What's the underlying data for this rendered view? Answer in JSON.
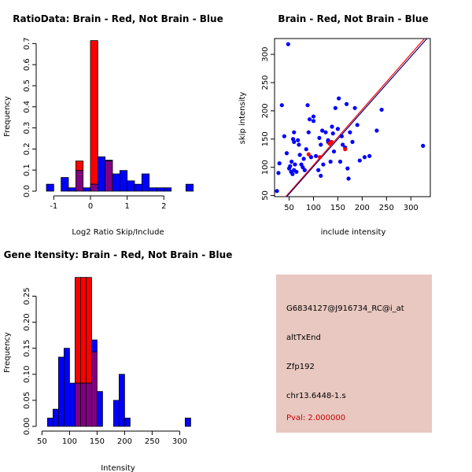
{
  "colors": {
    "red": "#ff0000",
    "blue": "#0000ff",
    "overlap": "#800080",
    "line_red": "#ff0000",
    "line_blue": "#000080",
    "panel_bg": "#e8c8c0",
    "pval": "#cc0000"
  },
  "chart_data": [
    {
      "id": "ratio",
      "type": "bar",
      "title": "RatioData: Brain - Red, Not Brain - Blue",
      "xlabel": "Log2 Ratio Skip/Include",
      "ylabel": "Frequency",
      "xlim": [
        -1.35,
        2.85
      ],
      "ylim": [
        0,
        0.72
      ],
      "xticks": [
        -1,
        0,
        1,
        2
      ],
      "yticks": [
        0.0,
        0.1,
        0.2,
        0.3,
        0.4,
        0.5,
        0.6,
        0.7
      ],
      "bin_edges": [
        -1.2,
        -1.0,
        -0.8,
        -0.6,
        -0.4,
        -0.2,
        0.0,
        0.2,
        0.4,
        0.6,
        0.8,
        1.0,
        1.2,
        1.4,
        1.6,
        1.8,
        2.0,
        2.2,
        2.4,
        2.6,
        2.8
      ],
      "series": [
        {
          "name": "Not Brain",
          "values": [
            0.033,
            0,
            0.065,
            0.016,
            0.098,
            0.016,
            0.033,
            0.163,
            0.147,
            0.082,
            0.098,
            0.049,
            0.033,
            0.082,
            0.016,
            0.016,
            0.016,
            0,
            0,
            0.033
          ]
        },
        {
          "name": "Brain",
          "values": [
            0,
            0,
            0,
            0,
            0.143,
            0,
            0.714,
            0,
            0.143,
            0,
            0,
            0,
            0,
            0,
            0,
            0,
            0,
            0,
            0,
            0
          ]
        }
      ]
    },
    {
      "id": "scatter",
      "type": "scatter",
      "title": "Brain - Red, Not Brain - Blue",
      "xlabel": "include intensity",
      "ylabel": "skip intensity",
      "xlim": [
        20,
        340
      ],
      "ylim": [
        48,
        328
      ],
      "xticks": [
        50,
        100,
        150,
        200,
        250,
        300
      ],
      "yticks": [
        50,
        100,
        150,
        200,
        250,
        300
      ],
      "series": [
        {
          "name": "Not Brain",
          "points": [
            [
              48,
              318
            ],
            [
              35,
              210
            ],
            [
              40,
              155
            ],
            [
              30,
              107
            ],
            [
              28,
              90
            ],
            [
              25,
              58
            ],
            [
              45,
              125
            ],
            [
              50,
              98
            ],
            [
              52,
              102
            ],
            [
              54,
              92
            ],
            [
              55,
              110
            ],
            [
              57,
              88
            ],
            [
              60,
              95
            ],
            [
              62,
              105
            ],
            [
              58,
              150
            ],
            [
              60,
              145
            ],
            [
              60,
              162
            ],
            [
              68,
              148
            ],
            [
              70,
              140
            ],
            [
              72,
              122
            ],
            [
              75,
              105
            ],
            [
              78,
              100
            ],
            [
              80,
              115
            ],
            [
              82,
              95
            ],
            [
              85,
              132
            ],
            [
              88,
              210
            ],
            [
              90,
              162
            ],
            [
              92,
              185
            ],
            [
              95,
              118
            ],
            [
              100,
              190
            ],
            [
              105,
              120
            ],
            [
              110,
              95
            ],
            [
              112,
              152
            ],
            [
              115,
              140
            ],
            [
              118,
              165
            ],
            [
              120,
              105
            ],
            [
              125,
              162
            ],
            [
              130,
              148
            ],
            [
              135,
              110
            ],
            [
              138,
              172
            ],
            [
              140,
              160
            ],
            [
              142,
              128
            ],
            [
              145,
              205
            ],
            [
              150,
              168
            ],
            [
              152,
              222
            ],
            [
              155,
              110
            ],
            [
              158,
              155
            ],
            [
              160,
              140
            ],
            [
              165,
              135
            ],
            [
              168,
              212
            ],
            [
              170,
              98
            ],
            [
              172,
              80
            ],
            [
              175,
              162
            ],
            [
              180,
              145
            ],
            [
              185,
              205
            ],
            [
              190,
              175
            ],
            [
              195,
              112
            ],
            [
              205,
              118
            ],
            [
              215,
              120
            ],
            [
              230,
              165
            ],
            [
              240,
              202
            ],
            [
              325,
              138
            ],
            [
              100,
              182
            ],
            [
              65,
              92
            ],
            [
              115,
              85
            ],
            [
              130,
              145
            ]
          ]
        },
        {
          "name": "Brain",
          "points": [
            [
              90,
              123
            ],
            [
              113,
              118
            ],
            [
              133,
              142
            ],
            [
              137,
              145
            ],
            [
              165,
              132
            ]
          ]
        }
      ],
      "lines": [
        {
          "name": "Brain fit",
          "from": [
            43,
            48
          ],
          "to": [
            328,
            328
          ]
        },
        {
          "name": "Not Brain fit",
          "from": [
            45,
            48
          ],
          "to": [
            333,
            328
          ]
        }
      ]
    },
    {
      "id": "intensity",
      "type": "bar",
      "title": "Gene Itensity: Brain - Red, Not Brain - Blue",
      "xlabel": "Intensity",
      "ylabel": "Frequency",
      "xlim": [
        48,
        328
      ],
      "ylim": [
        0,
        0.29
      ],
      "xticks": [
        50,
        100,
        150,
        200,
        250,
        300
      ],
      "yticks": [
        0.0,
        0.05,
        0.1,
        0.15,
        0.2,
        0.25
      ],
      "bin_edges": [
        60,
        70,
        80,
        90,
        100,
        110,
        120,
        130,
        140,
        150,
        160,
        170,
        180,
        190,
        200,
        210,
        220,
        230,
        240,
        250,
        260,
        270,
        280,
        290,
        300,
        310,
        320
      ],
      "series": [
        {
          "name": "Not Brain",
          "values": [
            0.016,
            0.033,
            0.133,
            0.15,
            0.083,
            0.083,
            0.083,
            0.083,
            0.166,
            0.067,
            0,
            0,
            0.05,
            0.1,
            0.016,
            0,
            0,
            0,
            0,
            0,
            0,
            0,
            0,
            0,
            0,
            0.016
          ]
        },
        {
          "name": "Brain",
          "values": [
            0,
            0,
            0,
            0,
            0,
            0.286,
            0.286,
            0.286,
            0.143,
            0,
            0,
            0,
            0,
            0,
            0,
            0,
            0,
            0,
            0,
            0,
            0,
            0,
            0,
            0,
            0,
            0
          ]
        }
      ]
    }
  ],
  "info_panel": {
    "probe_id": "G6834127@J916734_RC@i_at",
    "event_type": "altTxEnd",
    "gene": "Zfp192",
    "location": "chr13.6448-1.s",
    "pval": "Pval: 2.000000"
  }
}
